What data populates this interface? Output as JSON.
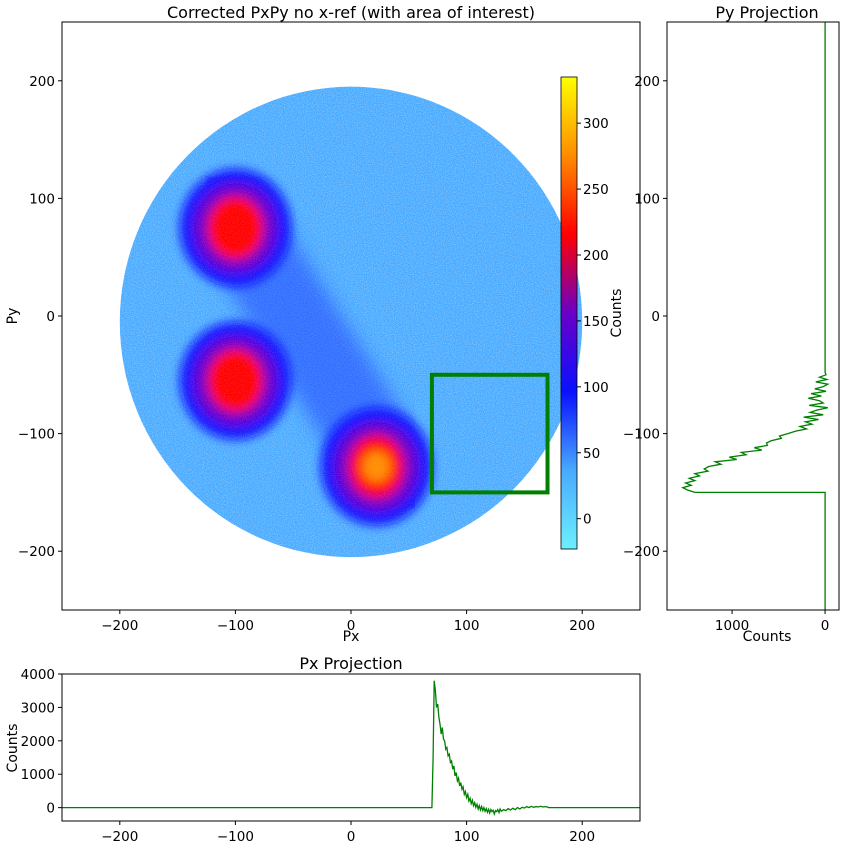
{
  "chart_data": [
    {
      "id": "main",
      "type": "heatmap",
      "title": "Corrected PxPy no x-ref (with area of interest)",
      "xlabel": "Px",
      "ylabel": "Py",
      "xlim": [
        -250,
        250
      ],
      "ylim": [
        -250,
        250
      ],
      "xticks": [
        -200,
        -100,
        0,
        100,
        200
      ],
      "yticks": [
        -200,
        -100,
        0,
        100,
        200
      ],
      "detector_radius": 200,
      "detector_center": [
        0,
        -5
      ],
      "background_counts": 30,
      "blobs": [
        {
          "x": -100,
          "y": 75,
          "peak_counts": 220
        },
        {
          "x": -100,
          "y": -55,
          "peak_counts": 240
        },
        {
          "x": 22,
          "y": -128,
          "peak_counts": 270
        }
      ],
      "area_of_interest": {
        "x": [
          70,
          170
        ],
        "y": [
          -150,
          -50
        ],
        "color": "#007f00"
      },
      "colorbar": {
        "label": "Counts",
        "range": [
          -23,
          335
        ],
        "ticks": [
          0,
          50,
          100,
          150,
          200,
          250,
          300
        ],
        "colors": [
          "#6cf0ff",
          "#48aaff",
          "#0a10ff",
          "#6a00c8",
          "#ff0000",
          "#ff8c00",
          "#ffff00"
        ]
      }
    },
    {
      "id": "py_projection",
      "type": "line",
      "title": "Py Projection",
      "xlabel": "Counts",
      "xlim": [
        1700,
        -150
      ],
      "ylim": [
        -250,
        250
      ],
      "xticks": [
        1000,
        0
      ],
      "yticks": [
        -200,
        -100,
        0,
        100,
        200
      ],
      "color": "#007f00",
      "series": [
        {
          "points": [
            [
              0,
              250
            ],
            [
              0,
              -48
            ],
            [
              -10,
              -50
            ],
            [
              60,
              -52
            ],
            [
              -20,
              -54
            ],
            [
              100,
              -56
            ],
            [
              -30,
              -58
            ],
            [
              20,
              -60
            ],
            [
              110,
              -62
            ],
            [
              -10,
              -64
            ],
            [
              150,
              -66
            ],
            [
              40,
              -68
            ],
            [
              180,
              -70
            ],
            [
              60,
              -72
            ],
            [
              20,
              -74
            ],
            [
              170,
              -76
            ],
            [
              -30,
              -78
            ],
            [
              90,
              -80
            ],
            [
              160,
              -82
            ],
            [
              20,
              -84
            ],
            [
              230,
              -86
            ],
            [
              70,
              -88
            ],
            [
              210,
              -90
            ],
            [
              140,
              -92
            ],
            [
              270,
              -94
            ],
            [
              200,
              -96
            ],
            [
              320,
              -98
            ],
            [
              400,
              -100
            ],
            [
              490,
              -102
            ],
            [
              470,
              -104
            ],
            [
              580,
              -106
            ],
            [
              630,
              -108
            ],
            [
              620,
              -110
            ],
            [
              760,
              -112
            ],
            [
              680,
              -114
            ],
            [
              900,
              -116
            ],
            [
              850,
              -118
            ],
            [
              1030,
              -120
            ],
            [
              950,
              -122
            ],
            [
              1180,
              -124
            ],
            [
              1120,
              -126
            ],
            [
              1250,
              -128
            ],
            [
              1300,
              -130
            ],
            [
              1260,
              -132
            ],
            [
              1400,
              -134
            ],
            [
              1350,
              -136
            ],
            [
              1460,
              -138
            ],
            [
              1400,
              -140
            ],
            [
              1500,
              -142
            ],
            [
              1440,
              -144
            ],
            [
              1530,
              -146
            ],
            [
              1480,
              -148
            ],
            [
              1400,
              -150
            ],
            [
              0,
              -150
            ],
            [
              0,
              -250
            ]
          ]
        }
      ]
    },
    {
      "id": "px_projection",
      "type": "line",
      "title": "Px Projection",
      "ylabel": "Counts",
      "xlim": [
        -250,
        250
      ],
      "ylim": [
        -400,
        4000
      ],
      "xticks": [
        -200,
        -100,
        0,
        100,
        200
      ],
      "yticks": [
        0,
        1000,
        2000,
        3000,
        4000
      ],
      "color": "#007f00",
      "series": [
        {
          "points": [
            [
              -250,
              0
            ],
            [
              70,
              0
            ],
            [
              71,
              1500
            ],
            [
              72,
              3800
            ],
            [
              73,
              3500
            ],
            [
              74,
              3000
            ],
            [
              75,
              3100
            ],
            [
              76,
              2700
            ],
            [
              77,
              2500
            ],
            [
              78,
              2200
            ],
            [
              79,
              2400
            ],
            [
              80,
              2050
            ],
            [
              81,
              2000
            ],
            [
              82,
              1750
            ],
            [
              83,
              1800
            ],
            [
              84,
              1550
            ],
            [
              85,
              1600
            ],
            [
              86,
              1350
            ],
            [
              87,
              1400
            ],
            [
              88,
              1150
            ],
            [
              89,
              1250
            ],
            [
              90,
              950
            ],
            [
              91,
              1050
            ],
            [
              92,
              800
            ],
            [
              93,
              880
            ],
            [
              94,
              650
            ],
            [
              95,
              750
            ],
            [
              96,
              550
            ],
            [
              97,
              620
            ],
            [
              98,
              400
            ],
            [
              99,
              480
            ],
            [
              100,
              300
            ],
            [
              101,
              400
            ],
            [
              102,
              200
            ],
            [
              103,
              280
            ],
            [
              104,
              120
            ],
            [
              105,
              220
            ],
            [
              106,
              60
            ],
            [
              107,
              150
            ],
            [
              108,
              10
            ],
            [
              109,
              100
            ],
            [
              110,
              -40
            ],
            [
              111,
              60
            ],
            [
              112,
              -70
            ],
            [
              113,
              30
            ],
            [
              114,
              -90
            ],
            [
              115,
              0
            ],
            [
              116,
              -110
            ],
            [
              117,
              -30
            ],
            [
              118,
              -140
            ],
            [
              119,
              -50
            ],
            [
              120,
              -160
            ],
            [
              121,
              -60
            ],
            [
              122,
              -120
            ],
            [
              123,
              -80
            ],
            [
              124,
              -190
            ],
            [
              125,
              -90
            ],
            [
              126,
              -120
            ],
            [
              127,
              -60
            ],
            [
              128,
              -150
            ],
            [
              129,
              -40
            ],
            [
              130,
              -110
            ],
            [
              132,
              -60
            ],
            [
              134,
              -90
            ],
            [
              136,
              -30
            ],
            [
              138,
              -70
            ],
            [
              140,
              -20
            ],
            [
              142,
              -60
            ],
            [
              144,
              0
            ],
            [
              146,
              -40
            ],
            [
              148,
              10
            ],
            [
              150,
              -10
            ],
            [
              152,
              30
            ],
            [
              154,
              0
            ],
            [
              156,
              40
            ],
            [
              158,
              10
            ],
            [
              160,
              30
            ],
            [
              162,
              20
            ],
            [
              164,
              40
            ],
            [
              166,
              20
            ],
            [
              168,
              30
            ],
            [
              170,
              20
            ],
            [
              171,
              0
            ],
            [
              250,
              0
            ]
          ]
        }
      ]
    }
  ]
}
